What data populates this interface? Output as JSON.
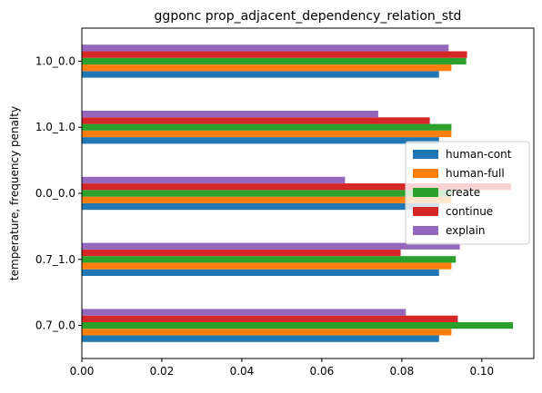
{
  "chart_data": {
    "type": "bar",
    "orientation": "horizontal",
    "title": "ggponc prop_adjacent_dependency_relation_std",
    "xlabel": "",
    "ylabel": "temperature, frequency penalty",
    "xlim": [
      0,
      0.113
    ],
    "xticks": [
      "0.00",
      "0.02",
      "0.04",
      "0.06",
      "0.08",
      "0.10"
    ],
    "xtick_values": [
      0,
      0.02,
      0.04,
      0.06,
      0.08,
      0.1
    ],
    "categories": [
      "0.7_0.0",
      "0.7_1.0",
      "0.0_0.0",
      "1.0_1.0",
      "1.0_0.0"
    ],
    "series": [
      {
        "name": "human-cont",
        "color": "#1f77b4",
        "values": [
          0.0893,
          0.0893,
          0.0893,
          0.0893,
          0.0893
        ]
      },
      {
        "name": "human-full",
        "color": "#ff7f0e",
        "values": [
          0.0924,
          0.0924,
          0.0924,
          0.0924,
          0.0924
        ]
      },
      {
        "name": "create",
        "color": "#2ca02c",
        "values": [
          0.1078,
          0.0935,
          0.0925,
          0.0924,
          0.0961
        ]
      },
      {
        "name": "continue",
        "color": "#d62728",
        "values": [
          0.094,
          0.0797,
          0.1073,
          0.087,
          0.0963
        ]
      },
      {
        "name": "explain",
        "color": "#9467bd",
        "values": [
          0.081,
          0.0945,
          0.0658,
          0.0741,
          0.0917
        ]
      }
    ],
    "grid": false,
    "legend_position": "center-right"
  }
}
